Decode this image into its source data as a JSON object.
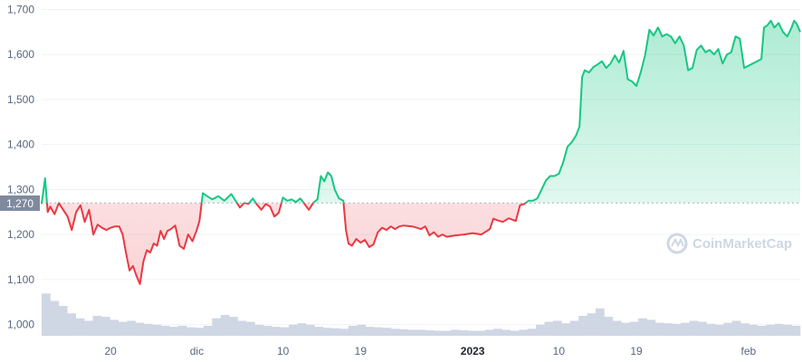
{
  "chart_data": {
    "type": "line",
    "y_ticks": [
      1000,
      1100,
      1200,
      1300,
      1400,
      1500,
      1600,
      1700
    ],
    "y_tick_labels": [
      "1,000",
      "1,100",
      "1,200",
      "1,300",
      "1,400",
      "1,500",
      "1,600",
      "1,700"
    ],
    "ylim": [
      975,
      1705
    ],
    "x_ticks": [
      {
        "label": "20",
        "day": 8,
        "bold": false
      },
      {
        "label": "dic",
        "day": 18,
        "bold": false
      },
      {
        "label": "10",
        "day": 28,
        "bold": false
      },
      {
        "label": "19",
        "day": 37,
        "bold": false
      },
      {
        "label": "2023",
        "day": 50,
        "bold": true
      },
      {
        "label": "10",
        "day": 60,
        "bold": false
      },
      {
        "label": "19",
        "day": 69,
        "bold": false
      },
      {
        "label": "feb",
        "day": 82,
        "bold": false
      }
    ],
    "xlim": [
      0,
      88
    ],
    "reference": {
      "value": 1270,
      "label": "1,270"
    },
    "series": [
      {
        "values": [
          [
            0,
            1268
          ],
          [
            0.4,
            1325
          ],
          [
            0.7,
            1250
          ],
          [
            1,
            1262
          ],
          [
            1.5,
            1245
          ],
          [
            2,
            1270
          ],
          [
            2.5,
            1255
          ],
          [
            3,
            1240
          ],
          [
            3.5,
            1210
          ],
          [
            4,
            1250
          ],
          [
            4.5,
            1265
          ],
          [
            5,
            1228
          ],
          [
            5.5,
            1255
          ],
          [
            6,
            1200
          ],
          [
            6.5,
            1222
          ],
          [
            7,
            1215
          ],
          [
            7.5,
            1210
          ],
          [
            8,
            1215
          ],
          [
            8.5,
            1218
          ],
          [
            9,
            1218
          ],
          [
            9.4,
            1200
          ],
          [
            9.8,
            1158
          ],
          [
            10.2,
            1120
          ],
          [
            10.6,
            1130
          ],
          [
            11,
            1108
          ],
          [
            11.4,
            1090
          ],
          [
            11.8,
            1140
          ],
          [
            12.2,
            1165
          ],
          [
            12.6,
            1160
          ],
          [
            13,
            1180
          ],
          [
            13.4,
            1175
          ],
          [
            13.8,
            1208
          ],
          [
            14.2,
            1190
          ],
          [
            14.6,
            1208
          ],
          [
            15,
            1212
          ],
          [
            15.5,
            1220
          ],
          [
            16,
            1175
          ],
          [
            16.5,
            1168
          ],
          [
            17,
            1200
          ],
          [
            17.5,
            1185
          ],
          [
            18,
            1210
          ],
          [
            18.3,
            1230
          ],
          [
            18.7,
            1292
          ],
          [
            19.2,
            1285
          ],
          [
            19.8,
            1278
          ],
          [
            20.5,
            1285
          ],
          [
            21.2,
            1275
          ],
          [
            22,
            1290
          ],
          [
            22.5,
            1275
          ],
          [
            23,
            1260
          ],
          [
            23.5,
            1270
          ],
          [
            24,
            1268
          ],
          [
            24.5,
            1280
          ],
          [
            25,
            1266
          ],
          [
            25.5,
            1255
          ],
          [
            26,
            1268
          ],
          [
            26.5,
            1262
          ],
          [
            27,
            1240
          ],
          [
            27.5,
            1248
          ],
          [
            28,
            1282
          ],
          [
            28.5,
            1275
          ],
          [
            29,
            1278
          ],
          [
            29.5,
            1272
          ],
          [
            30,
            1280
          ],
          [
            30.5,
            1268
          ],
          [
            31,
            1255
          ],
          [
            31.5,
            1270
          ],
          [
            32,
            1278
          ],
          [
            32.4,
            1330
          ],
          [
            32.8,
            1318
          ],
          [
            33.2,
            1338
          ],
          [
            33.6,
            1330
          ],
          [
            34,
            1300
          ],
          [
            34.5,
            1280
          ],
          [
            35,
            1275
          ],
          [
            35.3,
            1210
          ],
          [
            35.6,
            1180
          ],
          [
            36,
            1175
          ],
          [
            36.5,
            1190
          ],
          [
            37,
            1182
          ],
          [
            37.5,
            1188
          ],
          [
            38,
            1172
          ],
          [
            38.5,
            1178
          ],
          [
            39,
            1205
          ],
          [
            39.5,
            1215
          ],
          [
            40,
            1210
          ],
          [
            40.5,
            1218
          ],
          [
            41,
            1212
          ],
          [
            41.5,
            1218
          ],
          [
            42,
            1220
          ],
          [
            43,
            1218
          ],
          [
            44,
            1212
          ],
          [
            44.5,
            1218
          ],
          [
            45,
            1198
          ],
          [
            45.5,
            1205
          ],
          [
            46,
            1195
          ],
          [
            46.5,
            1200
          ],
          [
            47,
            1195
          ],
          [
            48,
            1198
          ],
          [
            49,
            1200
          ],
          [
            50,
            1203
          ],
          [
            51,
            1200
          ],
          [
            52,
            1212
          ],
          [
            52.4,
            1235
          ],
          [
            52.8,
            1232
          ],
          [
            53.5,
            1228
          ],
          [
            54.2,
            1236
          ],
          [
            55,
            1230
          ],
          [
            55.5,
            1265
          ],
          [
            56,
            1268
          ],
          [
            56.5,
            1275
          ],
          [
            57,
            1275
          ],
          [
            57.5,
            1280
          ],
          [
            58,
            1300
          ],
          [
            58.5,
            1320
          ],
          [
            59,
            1330
          ],
          [
            59.5,
            1330
          ],
          [
            60,
            1335
          ],
          [
            60.5,
            1360
          ],
          [
            61,
            1395
          ],
          [
            61.5,
            1405
          ],
          [
            62,
            1420
          ],
          [
            62.4,
            1440
          ],
          [
            62.7,
            1550
          ],
          [
            63,
            1565
          ],
          [
            63.5,
            1560
          ],
          [
            64,
            1572
          ],
          [
            64.5,
            1578
          ],
          [
            65,
            1585
          ],
          [
            65.5,
            1570
          ],
          [
            66,
            1580
          ],
          [
            66.5,
            1598
          ],
          [
            67,
            1582
          ],
          [
            67.5,
            1608
          ],
          [
            68,
            1545
          ],
          [
            68.5,
            1540
          ],
          [
            69,
            1530
          ],
          [
            69.5,
            1560
          ],
          [
            70,
            1598
          ],
          [
            70.5,
            1655
          ],
          [
            71,
            1642
          ],
          [
            71.5,
            1660
          ],
          [
            72,
            1640
          ],
          [
            72.5,
            1645
          ],
          [
            73,
            1640
          ],
          [
            73.5,
            1625
          ],
          [
            74,
            1640
          ],
          [
            74.5,
            1620
          ],
          [
            75,
            1565
          ],
          [
            75.5,
            1570
          ],
          [
            76,
            1610
          ],
          [
            76.5,
            1620
          ],
          [
            77,
            1605
          ],
          [
            77.5,
            1610
          ],
          [
            78,
            1600
          ],
          [
            78.5,
            1612
          ],
          [
            79,
            1580
          ],
          [
            79.5,
            1600
          ],
          [
            80,
            1605
          ],
          [
            80.5,
            1640
          ],
          [
            81,
            1635
          ],
          [
            81.5,
            1570
          ],
          [
            82,
            1575
          ],
          [
            82.5,
            1580
          ],
          [
            83,
            1585
          ],
          [
            83.5,
            1590
          ],
          [
            83.8,
            1660
          ],
          [
            84.2,
            1665
          ],
          [
            84.6,
            1675
          ],
          [
            85,
            1660
          ],
          [
            85.5,
            1670
          ],
          [
            86,
            1650
          ],
          [
            86.5,
            1640
          ],
          [
            87,
            1660
          ],
          [
            87.3,
            1675
          ],
          [
            87.6,
            1668
          ],
          [
            88,
            1650
          ]
        ]
      }
    ],
    "volume": [
      0.85,
      0.7,
      0.6,
      0.45,
      0.35,
      0.3,
      0.4,
      0.38,
      0.32,
      0.28,
      0.3,
      0.26,
      0.24,
      0.22,
      0.2,
      0.18,
      0.2,
      0.17,
      0.16,
      0.2,
      0.35,
      0.42,
      0.38,
      0.3,
      0.28,
      0.22,
      0.2,
      0.18,
      0.17,
      0.22,
      0.25,
      0.22,
      0.18,
      0.16,
      0.15,
      0.14,
      0.2,
      0.22,
      0.18,
      0.17,
      0.16,
      0.14,
      0.13,
      0.12,
      0.12,
      0.11,
      0.1,
      0.1,
      0.12,
      0.11,
      0.1,
      0.1,
      0.12,
      0.14,
      0.12,
      0.1,
      0.12,
      0.14,
      0.22,
      0.28,
      0.3,
      0.25,
      0.3,
      0.4,
      0.45,
      0.55,
      0.38,
      0.3,
      0.26,
      0.28,
      0.35,
      0.32,
      0.26,
      0.25,
      0.24,
      0.26,
      0.3,
      0.28,
      0.24,
      0.22,
      0.26,
      0.3,
      0.25,
      0.22,
      0.2,
      0.22,
      0.24,
      0.22,
      0.2
    ],
    "colors": {
      "up": "#16c784",
      "down": "#ea3943",
      "volume": "#cfd6e4",
      "grid": "#eff2f5",
      "ref": "#a6b0c3"
    },
    "watermark": "CoinMarketCap"
  }
}
